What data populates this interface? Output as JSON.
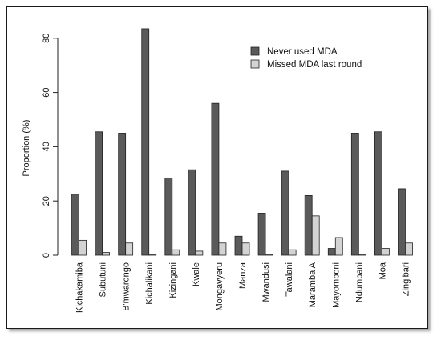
{
  "chart_data": {
    "type": "bar",
    "title": "",
    "xlabel": "",
    "ylabel": "Proportion (%)",
    "ylim": [
      0,
      85
    ],
    "yticks": [
      0,
      20,
      40,
      60,
      80
    ],
    "grid": false,
    "legend_position": "top-right",
    "categories": [
      "Kichakamiba",
      "Subutuni",
      "B'mwarongo",
      "Kichalikani",
      "Kizingani",
      "Kwale",
      "Mongavyeru",
      "Manza",
      "Mwandusi",
      "Tawalani",
      "Maramba A",
      "Mayomboni",
      "Ndumbani",
      "Moa",
      "Zingibari"
    ],
    "series": [
      {
        "name": "Never used MDA",
        "color": "#5a5a5a",
        "values": [
          22.5,
          45.5,
          45,
          83.5,
          28.5,
          31.5,
          56,
          7,
          15.5,
          31,
          22,
          2.5,
          45,
          45.5,
          24.5
        ]
      },
      {
        "name": "Missed MDA last round",
        "color": "#d3d3d3",
        "values": [
          5.5,
          1,
          4.5,
          0.3,
          2,
          1.5,
          4.5,
          4.5,
          0.3,
          2,
          14.5,
          6.5,
          0.3,
          2.5,
          4.5
        ]
      }
    ]
  }
}
